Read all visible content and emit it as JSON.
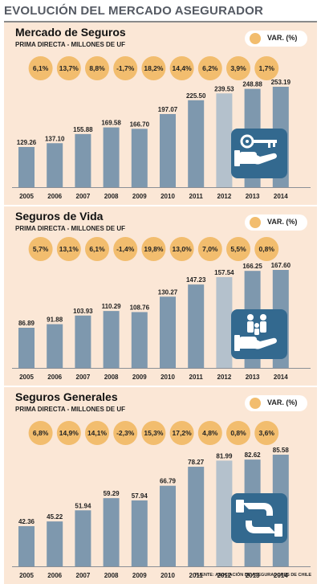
{
  "header": {
    "title": "EVOLUCIÓN DEL MERCADO ASEGURADOR"
  },
  "legend_label": "VAR. (%)",
  "source": "FUENTE: ASOCIACIÓN DE ASEGURADORES DE CHILE",
  "colors": {
    "bar": "#7e98ae",
    "bar_highlight": "#b4c1cc",
    "bubble": "#f2bd6e",
    "panel": "#fbe7d6",
    "icon_box": "#33698f"
  },
  "chart_data": [
    {
      "type": "bar",
      "title": "Mercado de Seguros",
      "subtitle": "PRIMA DIRECTA - MILLONES DE UF",
      "categories": [
        "2005",
        "2006",
        "2007",
        "2008",
        "2009",
        "2010",
        "2011",
        "2012",
        "2013",
        "2014"
      ],
      "values": [
        129.26,
        137.1,
        155.88,
        169.58,
        166.7,
        197.07,
        225.5,
        239.53,
        248.88,
        253.19
      ],
      "value_labels": [
        "129.26",
        "137.10",
        "155.88",
        "169.58",
        "166.70",
        "197.07",
        "225.50",
        "239.53",
        "248.88",
        "253.19"
      ],
      "var_labels": [
        "6,1%",
        "13,7%",
        "8,8%",
        "-1,7%",
        "18,2%",
        "14,4%",
        "6,2%",
        "3,9%",
        "1,7%"
      ],
      "icon": "hand-key-icon",
      "grid": false,
      "legend": "top-right"
    },
    {
      "type": "bar",
      "title": "Seguros de Vida",
      "subtitle": "PRIMA DIRECTA - MILLONES DE UF",
      "categories": [
        "2005",
        "2006",
        "2007",
        "2008",
        "2009",
        "2010",
        "2011",
        "2012",
        "2013",
        "2014"
      ],
      "values": [
        86.89,
        91.88,
        103.93,
        110.29,
        108.76,
        130.27,
        147.23,
        157.54,
        166.25,
        167.6
      ],
      "value_labels": [
        "86.89",
        "91.88",
        "103.93",
        "110.29",
        "108.76",
        "130.27",
        "147.23",
        "157.54",
        "166.25",
        "167.60"
      ],
      "var_labels": [
        "5,7%",
        "13,1%",
        "6,1%",
        "-1,4%",
        "19,8%",
        "13,0%",
        "7,0%",
        "5,5%",
        "0,8%"
      ],
      "icon": "hand-family-icon",
      "grid": false,
      "legend": "top-right"
    },
    {
      "type": "bar",
      "title": "Seguros Generales",
      "subtitle": "PRIMA DIRECTA - MILLONES DE UF",
      "categories": [
        "2005",
        "2006",
        "2007",
        "2008",
        "2009",
        "2010",
        "2011",
        "2012",
        "2013",
        "2014"
      ],
      "values": [
        42.36,
        45.22,
        51.94,
        59.29,
        57.94,
        66.79,
        78.27,
        81.99,
        82.62,
        85.58
      ],
      "value_labels": [
        "42.36",
        "45.22",
        "51.94",
        "59.29",
        "57.94",
        "66.79",
        "78.27",
        "81.99",
        "82.62",
        "85.58"
      ],
      "var_labels": [
        "6,8%",
        "14,9%",
        "14,1%",
        "-2,3%",
        "15,3%",
        "17,2%",
        "4,8%",
        "0,8%",
        "3,6%"
      ],
      "icon": "handshake-icon",
      "grid": false,
      "legend": "top-right"
    }
  ]
}
